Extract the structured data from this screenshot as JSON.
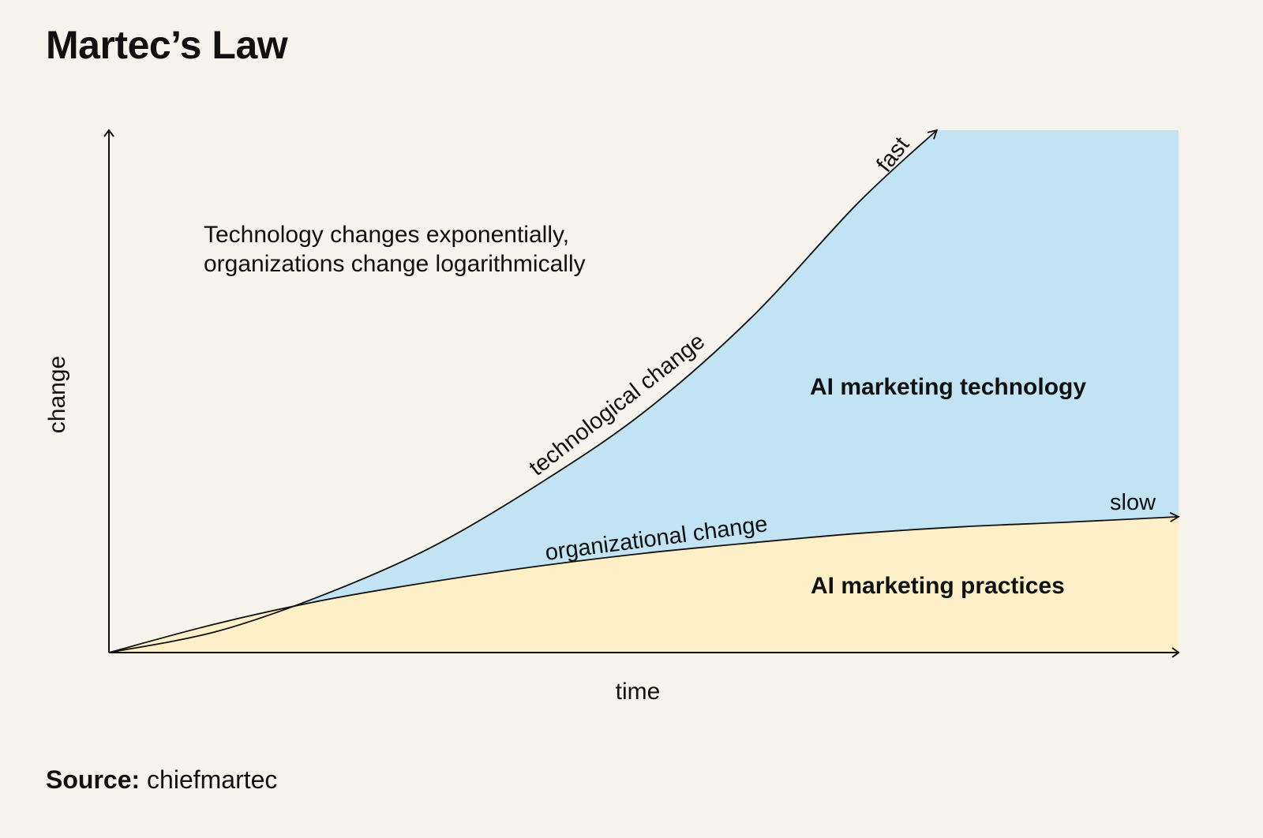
{
  "title": "Martec’s Law",
  "source": {
    "label": "Source:",
    "value": "chiefmartec"
  },
  "colors": {
    "background": "#f6f3ec",
    "technology_fill": "#c1e3f3",
    "practices_fill": "#fdefc8",
    "line": "#111111"
  },
  "chart_data": {
    "type": "area",
    "title": "Martec’s Law",
    "subtitle": "Technology changes exponentially, organizations change logarithmically",
    "xlabel": "time",
    "ylabel": "change",
    "xlim": [
      0,
      1
    ],
    "ylim": [
      0,
      1
    ],
    "grid": false,
    "legend": "none",
    "series": [
      {
        "name": "technological change",
        "shape": "exponential",
        "end_label": "fast",
        "x": [
          0,
          0.1,
          0.2,
          0.3,
          0.4,
          0.5,
          0.6,
          0.7,
          0.774
        ],
        "y": [
          0,
          0.04,
          0.11,
          0.2,
          0.32,
          0.46,
          0.64,
          0.86,
          1.0
        ]
      },
      {
        "name": "organizational change",
        "shape": "logarithmic",
        "end_label": "slow",
        "x": [
          0,
          0.1,
          0.2,
          0.3,
          0.4,
          0.5,
          0.6,
          0.7,
          0.8,
          0.9,
          1.0
        ],
        "y": [
          0,
          0.055,
          0.1,
          0.135,
          0.165,
          0.19,
          0.21,
          0.228,
          0.241,
          0.25,
          0.26
        ]
      }
    ],
    "regions": [
      {
        "name": "AI marketing technology",
        "between": [
          "organizational change",
          "technological change"
        ]
      },
      {
        "name": "AI marketing practices",
        "between": [
          "x-axis",
          "organizational change"
        ]
      }
    ],
    "annotations": [
      "Technology changes exponentially,",
      "organizations change logarithmically"
    ]
  }
}
